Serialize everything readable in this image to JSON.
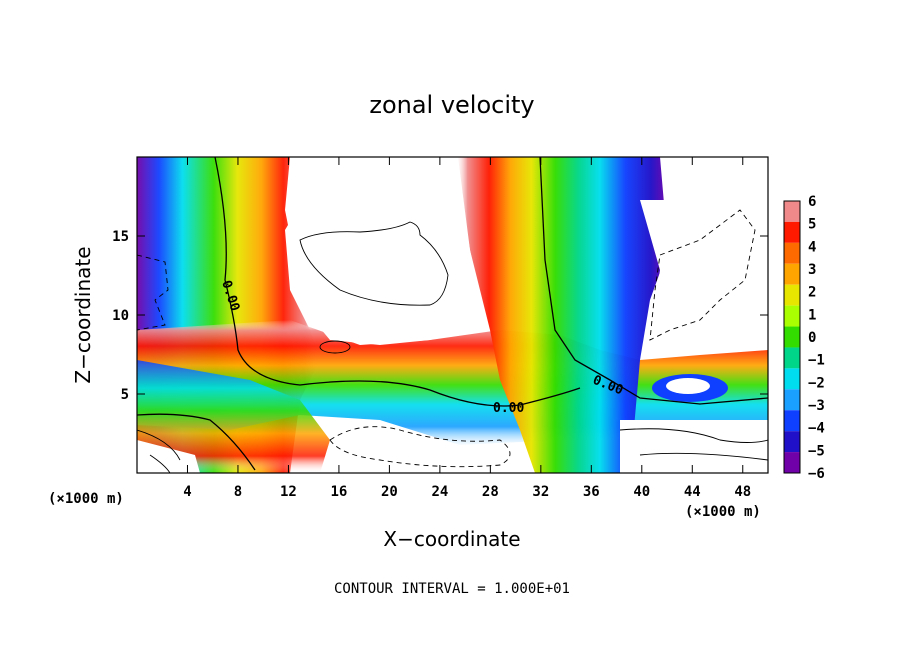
{
  "chart_data": {
    "type": "heatmap",
    "title": "zonal velocity",
    "xlabel": "X−coordinate",
    "ylabel": "Z−coordinate",
    "x_unit_label": "(×1000 m)",
    "x_unit_label_right": "(×1000 m)",
    "xlim": [
      0,
      50
    ],
    "ylim": [
      0,
      20
    ],
    "x_ticks": [
      4,
      8,
      12,
      16,
      20,
      24,
      28,
      32,
      36,
      40,
      44,
      48
    ],
    "y_ticks": [
      5,
      10,
      15
    ],
    "footnote": "CONTOUR INTERVAL = 1.000E+01",
    "colorbar": {
      "levels": [
        6,
        5,
        4,
        3,
        2,
        1,
        0,
        -1,
        -2,
        -3,
        -4,
        -5,
        -6
      ],
      "labels": [
        "6",
        "5",
        "4",
        "3",
        "2",
        "1",
        "0",
        "−1",
        "−2",
        "−3",
        "−4",
        "−5",
        "−6"
      ],
      "colors": [
        "#f08a8a",
        "#ff1a00",
        "#ff6a00",
        "#ffa500",
        "#e6e600",
        "#aaff00",
        "#33dd00",
        "#00d68a",
        "#00ddee",
        "#1aa0ff",
        "#1040ff",
        "#2010c8",
        "#7000a8"
      ]
    },
    "contour_labels": [
      "0.00",
      "0.00",
      "0.00"
    ],
    "field_features": [
      {
        "kind": "jet",
        "x_center": 7.5,
        "z_range": [
          0,
          20
        ],
        "u_range": [
          -6,
          6
        ]
      },
      {
        "kind": "layer",
        "z_center": 6,
        "x_range": [
          0,
          50
        ],
        "u_range": [
          -6,
          6
        ]
      },
      {
        "kind": "jet",
        "x_center": 33,
        "z_range": [
          0,
          20
        ],
        "u_range": [
          -6,
          6
        ]
      },
      {
        "kind": "cell",
        "x_center": 43,
        "z_center": 6,
        "u_range": [
          -6,
          0
        ]
      }
    ]
  }
}
